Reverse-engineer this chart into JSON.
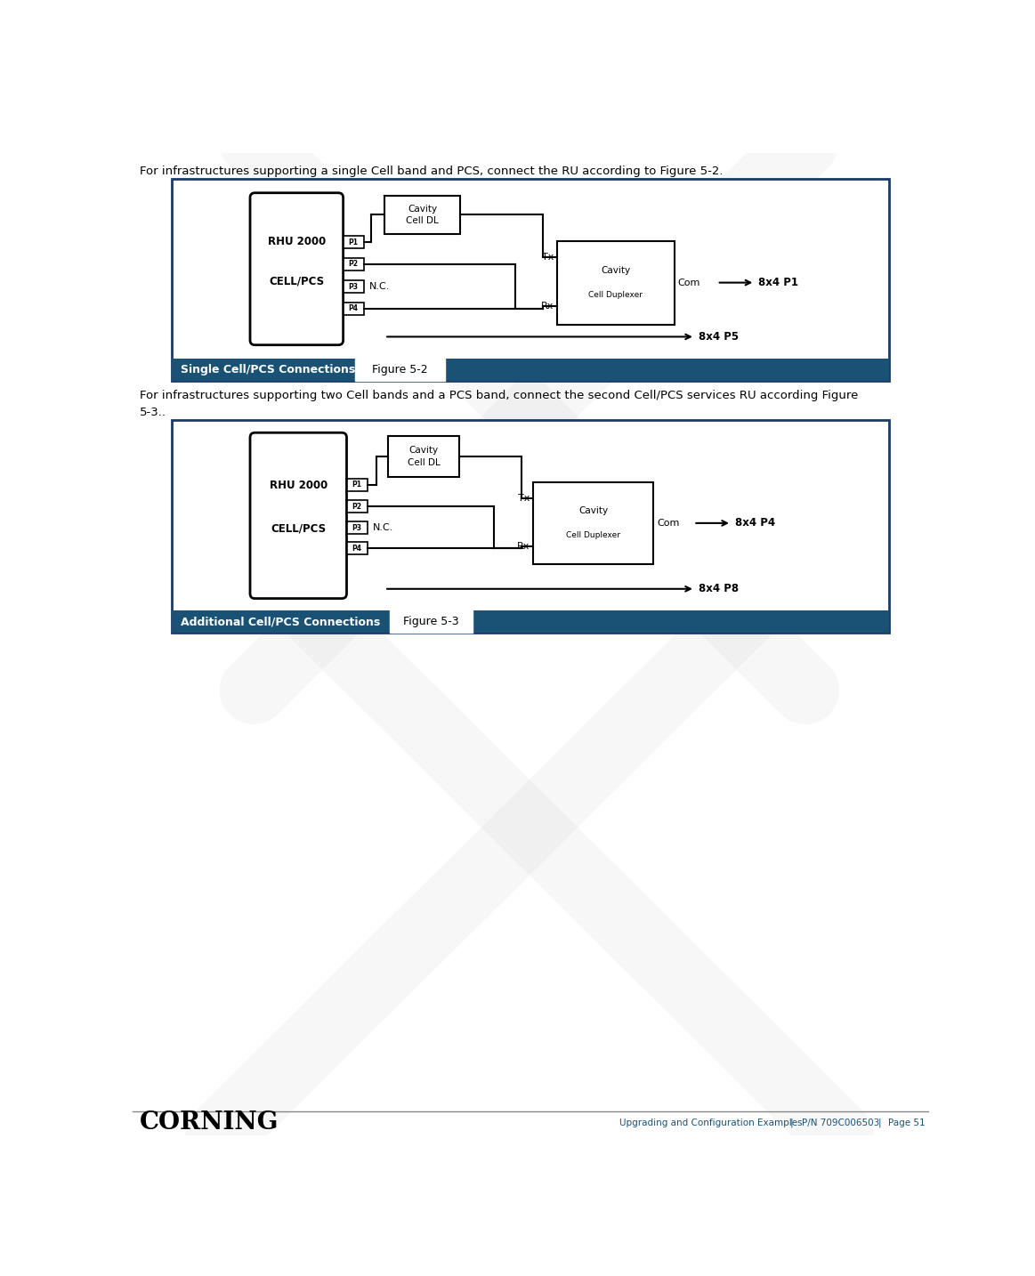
{
  "bg_color": "#ffffff",
  "border_color": "#1a3a6b",
  "caption_bar_color": "#1a5276",
  "header_text": "For infrastructures supporting a single Cell band and PCS, connect the RU according to Figure 5-2.",
  "header2_line1": "For infrastructures supporting two Cell bands and a PCS band, connect the second Cell/PCS services RU according Figure",
  "header2_line2": "5-3..",
  "caption1": "Single Cell/PCS Connections",
  "caption2": "Additional Cell/PCS Connections",
  "fig_label1": "Figure 5-2",
  "fig_label2": "Figure 5-3",
  "footer_left": "CORNING",
  "footer_center": "Upgrading and Configuration Examples",
  "footer_sep1": "|",
  "footer_pn": "P/N 709C006503",
  "footer_sep2": "|",
  "footer_page": "Page 51",
  "draft_color": "#c8c8c8",
  "line_color": "#000000"
}
